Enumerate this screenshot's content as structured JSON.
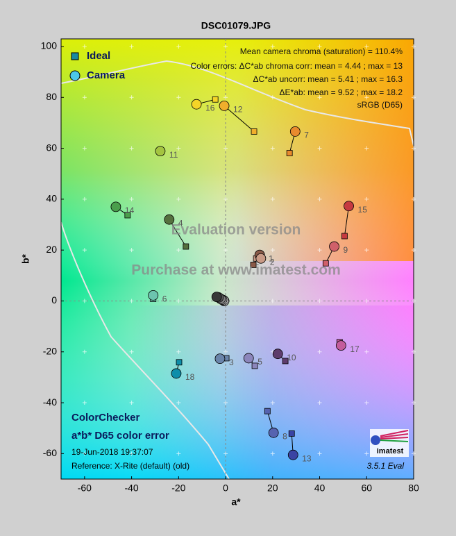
{
  "chart_data": {
    "type": "scatter",
    "title": "DSC01079.JPG",
    "x_label": "a*",
    "y_label": "b*",
    "xlim": [
      -70,
      80
    ],
    "ylim": [
      -70,
      103
    ],
    "xticks": [
      -60,
      -40,
      -20,
      0,
      20,
      40,
      60,
      80
    ],
    "yticks": [
      -60,
      -40,
      -20,
      0,
      20,
      40,
      60,
      80,
      100
    ],
    "grid": true,
    "legend": "top-left",
    "series": [
      {
        "name": "Ideal",
        "marker": "square",
        "color": "#1a8aa0",
        "x": [
          11.8,
          13,
          0.3,
          -16.9,
          12.4,
          -30.8,
          27.2,
          17.8,
          42.6,
          25.4,
          -27.5,
          12.1,
          28.1,
          -41.7,
          50.6,
          -4.4,
          48.5,
          -19.8,
          -0.5,
          -0.5,
          -0.5,
          -0.5,
          -0.5,
          -0.5
        ],
        "y": [
          14.2,
          16.7,
          -22.5,
          21.4,
          -25.5,
          0.8,
          58.1,
          -43.3,
          14.8,
          -23.6,
          58.6,
          66.6,
          -52.1,
          33.7,
          25.5,
          79.2,
          -16.2,
          -24.1,
          0,
          0,
          0,
          0,
          0,
          0
        ]
      },
      {
        "name": "Camera",
        "marker": "circle",
        "color": "#4cc8e8",
        "x": [
          14.5,
          15,
          -2.4,
          -24,
          9.8,
          -30.8,
          29.6,
          20.4,
          46.2,
          22.2,
          -27.8,
          -0.6,
          28.7,
          -46.7,
          52.4,
          -12.4,
          49.1,
          -21,
          -0.6,
          -0.9,
          -1.5,
          -2.1,
          -3,
          -3.8
        ],
        "y": [
          18.1,
          16.7,
          -22.7,
          32,
          -22.5,
          2.2,
          66.6,
          -51.8,
          21.4,
          -20.8,
          58.9,
          76.7,
          -60.5,
          37,
          37.3,
          77.3,
          -17.5,
          -28.5,
          0,
          0.3,
          0.5,
          0.8,
          1.4,
          1.6
        ]
      }
    ],
    "point_labels": [
      1,
      2,
      3,
      4,
      5,
      6,
      7,
      8,
      9,
      10,
      11,
      12,
      13,
      14,
      15,
      16,
      17,
      18,
      null,
      null,
      null,
      null,
      null,
      null
    ],
    "point_colors": [
      "#8a5a48",
      "#c99a86",
      "#6a84aa",
      "#55703e",
      "#8c86bb",
      "#6cc4ae",
      "#e88a2e",
      "#5663b0",
      "#d0606a",
      "#5e3c6c",
      "#a4c440",
      "#f0ae2c",
      "#3a44a4",
      "#4a9e4c",
      "#c63a40",
      "#f4d428",
      "#c45c9c",
      "#0e8eaa",
      "#fafafa",
      "#d0d0d0",
      "#a8a8a8",
      "#808080",
      "#5a5a5a",
      "#383838"
    ],
    "annotations": [
      "Mean camera chroma (saturation) = 110.4%",
      "Color errors:  ΔC*ab chroma corr:  mean = 4.44 ;  max = 13",
      "ΔC*ab uncorr:  mean = 5.41 ;  max = 16.3",
      "ΔE*ab:  mean = 9.52 ;  max = 18.2",
      "sRGB (D65)"
    ],
    "footer": [
      "ColorChecker",
      "a*b* D65 color error",
      "19-Jun-2018 19:37:07",
      "Reference: X-Rite (default) (old)"
    ],
    "watermark": [
      "Evaluation version",
      "Purchase at www.imatest.com"
    ],
    "version": "3.5.1  Eval",
    "logo": "imatest"
  }
}
